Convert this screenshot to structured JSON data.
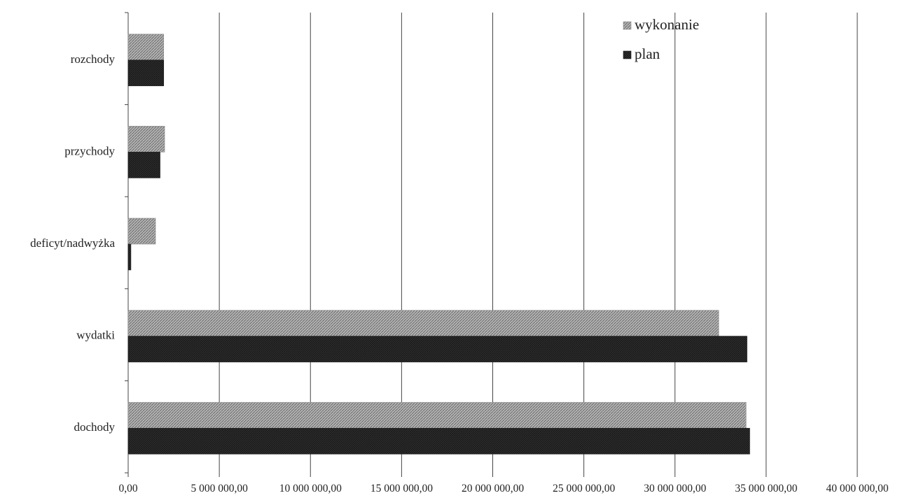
{
  "chart_data": {
    "type": "bar",
    "orientation": "horizontal",
    "categories": [
      "dochody",
      "wydatki",
      "deficyt/nadwyżka",
      "przychody",
      "rozchody"
    ],
    "series": [
      {
        "name": "wykonanie",
        "color": "#9a9a9a",
        "values": [
          33900000,
          32400000,
          1500000,
          2000000,
          1950000
        ]
      },
      {
        "name": "plan",
        "color": "#2a2a2a",
        "values": [
          34100000,
          33950000,
          150000,
          1750000,
          1950000
        ]
      }
    ],
    "xlim": [
      0,
      40000000
    ],
    "x_ticks": [
      "0,00",
      "5 000 000,00",
      "10 000 000,00",
      "15 000 000,00",
      "20 000 000,00",
      "25 000 000,00",
      "30 000 000,00",
      "35 000 000,00",
      "40 000 000,00"
    ],
    "grid": "vertical",
    "legend_position": "top-right",
    "title": "",
    "xlabel": "",
    "ylabel": ""
  }
}
